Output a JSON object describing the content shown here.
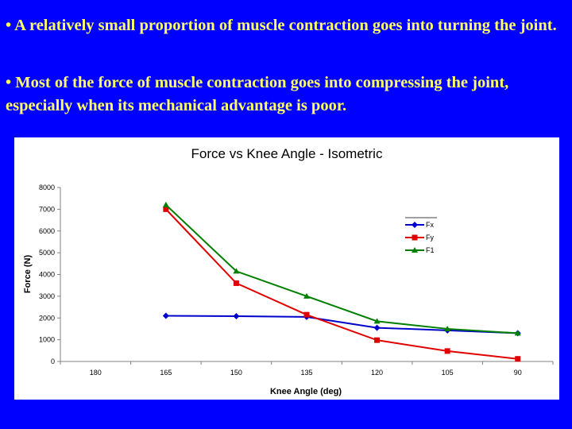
{
  "slide": {
    "bullet1": "• A relatively small proportion of muscle contraction goes into turning the joint.",
    "bullet2": "• Most of the force of muscle contraction goes into compressing the joint, especially when its mechanical advantage is poor."
  },
  "chart_data": {
    "type": "line",
    "title": "Force vs Knee Angle - Isometric",
    "xlabel": "Knee Angle (deg)",
    "ylabel": "Force (N)",
    "categories": [
      "180",
      "165",
      "150",
      "135",
      "120",
      "105",
      "90"
    ],
    "ylim": [
      0,
      8000
    ],
    "yticks": [
      0,
      1000,
      2000,
      3000,
      4000,
      5000,
      6000,
      7000,
      8000
    ],
    "legend_position": "right",
    "grid": false,
    "series": [
      {
        "name": "Fx",
        "color": "#0000cc",
        "marker": "diamond",
        "values": [
          null,
          2100,
          2080,
          2050,
          1550,
          1430,
          1300
        ]
      },
      {
        "name": "Fy",
        "color": "#e00000",
        "marker": "square",
        "values": [
          null,
          7000,
          3600,
          2150,
          980,
          480,
          120
        ]
      },
      {
        "name": "F1",
        "color": "#008000",
        "marker": "triangle",
        "values": [
          null,
          7200,
          4150,
          3000,
          1850,
          1500,
          1300
        ]
      }
    ]
  }
}
